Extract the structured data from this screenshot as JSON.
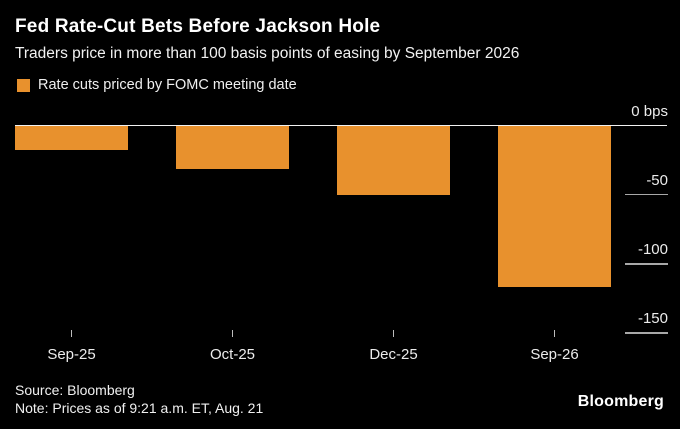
{
  "header": {
    "title": "Fed Rate-Cut Bets Before Jackson Hole",
    "subtitle": "Traders price in more than 100 basis points of easing by September 2026"
  },
  "legend": {
    "label": "Rate cuts priced by FOMC meeting date",
    "swatch_color": "#e8912d"
  },
  "chart_data": {
    "type": "bar",
    "title": "Fed Rate-Cut Bets Before Jackson Hole",
    "subtitle": "Traders price in more than 100 basis points of easing by September 2026",
    "series_name": "Rate cuts priced by FOMC meeting date",
    "categories": [
      "Sep-25",
      "Oct-25",
      "Dec-25",
      "Sep-26"
    ],
    "values": [
      -17,
      -31,
      -50,
      -116
    ],
    "unit": "bps",
    "xlabel": "",
    "ylabel": "",
    "ylim": [
      -150,
      0
    ],
    "yticks": [
      0,
      -50,
      -100,
      -150
    ],
    "ytick_labels": [
      "0 bps",
      "-50",
      "-100",
      "-150"
    ],
    "axis_side": "right",
    "grid": false,
    "legend_position": "top-left",
    "bar_color": "#e8912d",
    "background_color": "#000000"
  },
  "footer": {
    "source": "Source: Bloomberg",
    "note": "Note: Prices as of 9:21 a.m. ET, Aug. 21",
    "brand": "Bloomberg"
  }
}
